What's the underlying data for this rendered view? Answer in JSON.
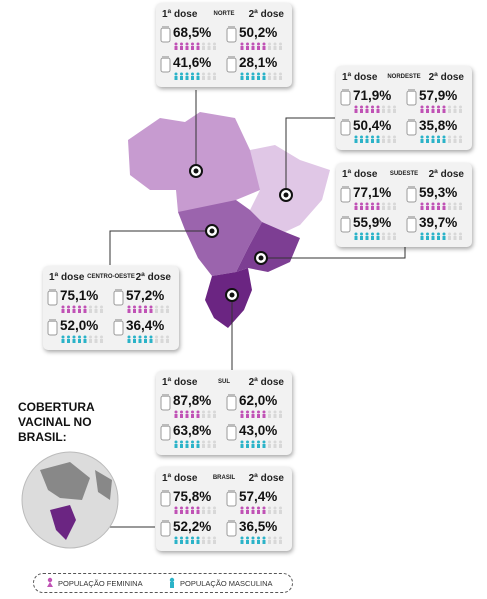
{
  "title": "COBERTURA VACINAL NO BRASIL:",
  "panels": [
    {
      "region": "NORTE",
      "dose1": "1ª dose",
      "dose2": "2ª dose",
      "female": [
        "68,5%",
        "50,2%"
      ],
      "male": [
        "41,6%",
        "28,1%"
      ]
    },
    {
      "region": "NORDESTE",
      "dose1": "1ª dose",
      "dose2": "2ª dose",
      "female": [
        "71,9%",
        "57,9%"
      ],
      "male": [
        "50,4%",
        "35,8%"
      ]
    },
    {
      "region": "SUDESTE",
      "dose1": "1ª dose",
      "dose2": "2ª dose",
      "female": [
        "77,1%",
        "59,3%"
      ],
      "male": [
        "55,9%",
        "39,7%"
      ]
    },
    {
      "region": "CENTRO-OESTE",
      "dose1": "1ª dose",
      "dose2": "2ª dose",
      "female": [
        "75,1%",
        "57,2%"
      ],
      "male": [
        "52,0%",
        "36,4%"
      ]
    },
    {
      "region": "SUL",
      "dose1": "1ª dose",
      "dose2": "2ª dose",
      "female": [
        "87,8%",
        "62,0%"
      ],
      "male": [
        "63,8%",
        "43,0%"
      ]
    },
    {
      "region": "BRASIL",
      "dose1": "1ª dose",
      "dose2": "2ª dose",
      "female": [
        "75,8%",
        "57,4%"
      ],
      "male": [
        "52,2%",
        "36,5%"
      ]
    }
  ],
  "legend": {
    "female": "POPULAÇÃO FEMININA",
    "male": "POPULAÇÃO MASCULINA"
  }
}
